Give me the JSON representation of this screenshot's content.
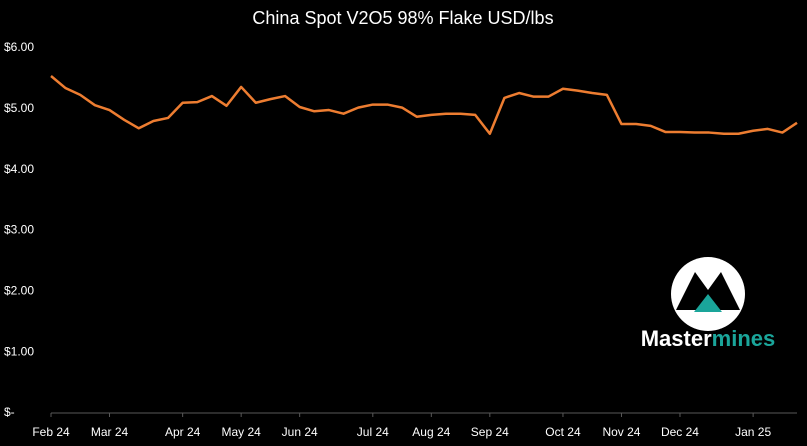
{
  "chart_data": {
    "type": "line",
    "title": "China Spot V2O5 98% Flake USD/lbs",
    "categories": [
      "Feb 24",
      null,
      null,
      null,
      "Mar 24",
      null,
      null,
      null,
      null,
      "Apr 24",
      null,
      null,
      null,
      "May 24",
      null,
      null,
      null,
      "Jun 24",
      null,
      null,
      null,
      null,
      "Jul 24",
      null,
      null,
      null,
      "Aug 24",
      null,
      null,
      null,
      "Sep 24",
      null,
      null,
      null,
      null,
      "Oct 24",
      null,
      null,
      null,
      "Nov 24",
      null,
      null,
      null,
      "Dec 24",
      null,
      null,
      null,
      null,
      "Jan 25",
      null,
      null,
      null
    ],
    "series": [
      {
        "name": "China Spot V2O5 98% Flake",
        "color": "#ed7d31",
        "values": [
          5.54,
          5.34,
          5.23,
          5.06,
          4.98,
          4.82,
          4.68,
          4.8,
          4.85,
          5.1,
          5.11,
          5.21,
          5.05,
          5.36,
          5.1,
          5.16,
          5.21,
          5.03,
          4.96,
          4.98,
          4.92,
          5.02,
          5.07,
          5.07,
          5.02,
          4.87,
          4.9,
          4.92,
          4.92,
          4.9,
          4.59,
          5.18,
          5.26,
          5.2,
          5.2,
          5.33,
          5.3,
          5.26,
          5.23,
          4.75,
          4.75,
          4.72,
          4.62,
          4.62,
          4.61,
          4.61,
          4.59,
          4.59,
          4.64,
          4.67,
          4.61,
          4.77
        ]
      }
    ],
    "ylim": [
      0,
      6
    ],
    "yticks": [
      {
        "value": 0,
        "label": "$-"
      },
      {
        "value": 1,
        "label": "$1.00"
      },
      {
        "value": 2,
        "label": "$2.00"
      },
      {
        "value": 3,
        "label": "$3.00"
      },
      {
        "value": 4,
        "label": "$4.00"
      },
      {
        "value": 5,
        "label": "$5.00"
      },
      {
        "value": 6,
        "label": "$6.00"
      }
    ],
    "grid": false
  },
  "logo": {
    "text": "Master",
    "accent": "mines"
  }
}
